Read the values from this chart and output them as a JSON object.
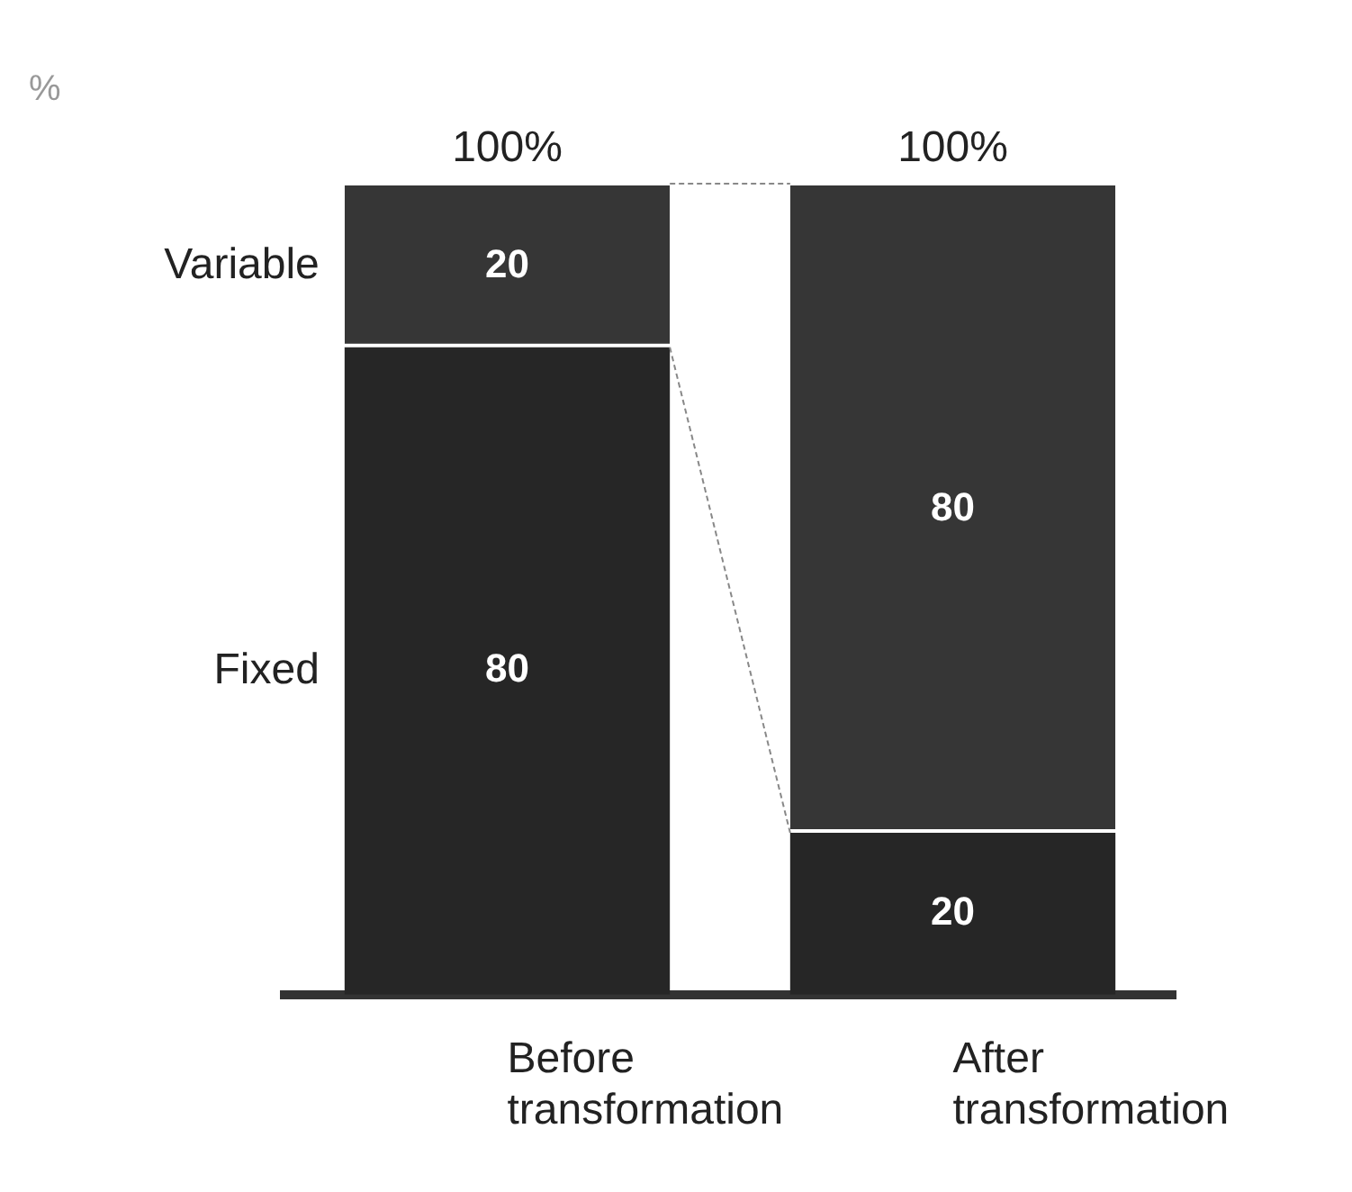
{
  "chart_data": {
    "type": "bar",
    "subtitle": "%",
    "categories": [
      "Before transformation",
      "After transformation"
    ],
    "stacked": true,
    "data_labels": true,
    "totals": [
      "100%",
      "100%"
    ],
    "legend": false,
    "grid": false,
    "series": [
      {
        "name": "Fixed",
        "color": "#262626",
        "values": [
          80,
          20
        ]
      },
      {
        "name": "Variable",
        "color": "#363636",
        "values": [
          20,
          80
        ]
      }
    ]
  }
}
